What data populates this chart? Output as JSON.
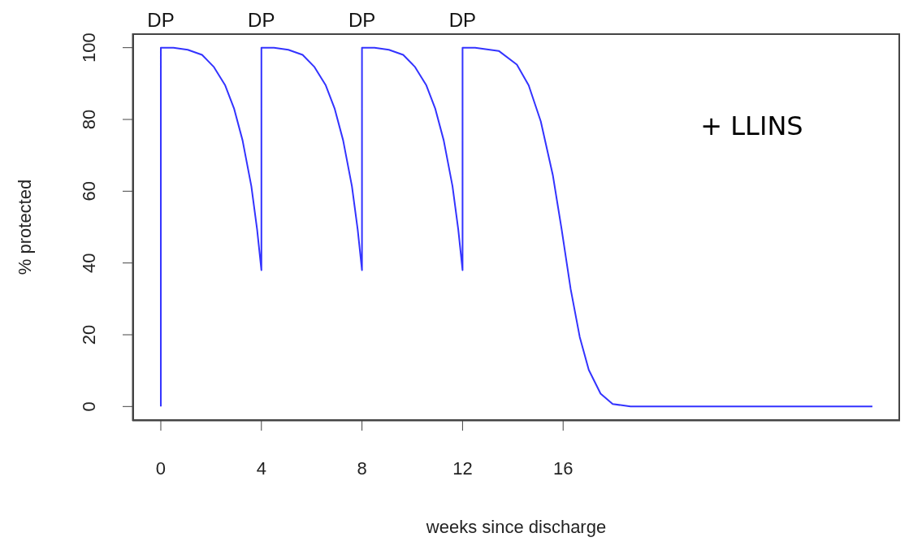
{
  "chart_data": {
    "type": "line",
    "xlabel": "weeks since discharge",
    "ylabel": "% protected",
    "xlim": [
      -1.13,
      29.4
    ],
    "ylim": [
      -4,
      104
    ],
    "xticks": [
      0,
      4,
      8,
      12,
      16
    ],
    "yticks": [
      0,
      20,
      40,
      60,
      80,
      100
    ],
    "grid": false,
    "legend": false,
    "marker": "none",
    "line_style": "solid",
    "series": [
      {
        "color": "#3333ff",
        "x": [
          0,
          0,
          0.5,
          1.07,
          1.64,
          2.1,
          2.56,
          2.91,
          3.25,
          3.6,
          3.83,
          4,
          4,
          4.5,
          5.07,
          5.64,
          6.1,
          6.56,
          6.91,
          7.25,
          7.6,
          7.83,
          8,
          8,
          8.5,
          9.07,
          9.64,
          10.1,
          10.56,
          10.91,
          11.25,
          11.6,
          11.83,
          12,
          12,
          12.5,
          13.44,
          14.16,
          14.63,
          15.11,
          15.59,
          15.94,
          16.3,
          16.66,
          17.02,
          17.49,
          17.97,
          18.68,
          28.3
        ],
        "values": [
          0,
          100,
          100,
          99.4,
          98,
          94.7,
          89.5,
          83.1,
          74.2,
          61.4,
          49.3,
          38,
          100,
          100,
          99.4,
          98,
          94.7,
          89.5,
          83.1,
          74.2,
          61.4,
          49.3,
          38,
          100,
          100,
          99.4,
          98,
          94.7,
          89.5,
          83.1,
          74.2,
          61.4,
          49.3,
          38,
          100,
          100,
          99.1,
          95.3,
          89.5,
          79.5,
          64.5,
          49.4,
          32.7,
          19.4,
          10.2,
          3.6,
          0.7,
          0,
          0
        ]
      }
    ],
    "annotations": [
      {
        "text": "DP",
        "x": 0,
        "y": 100
      },
      {
        "text": "DP",
        "x": 4,
        "y": 100
      },
      {
        "text": "DP",
        "x": 8,
        "y": 100
      },
      {
        "text": "DP",
        "x": 12,
        "y": 100
      },
      "+ LLINS"
    ]
  }
}
